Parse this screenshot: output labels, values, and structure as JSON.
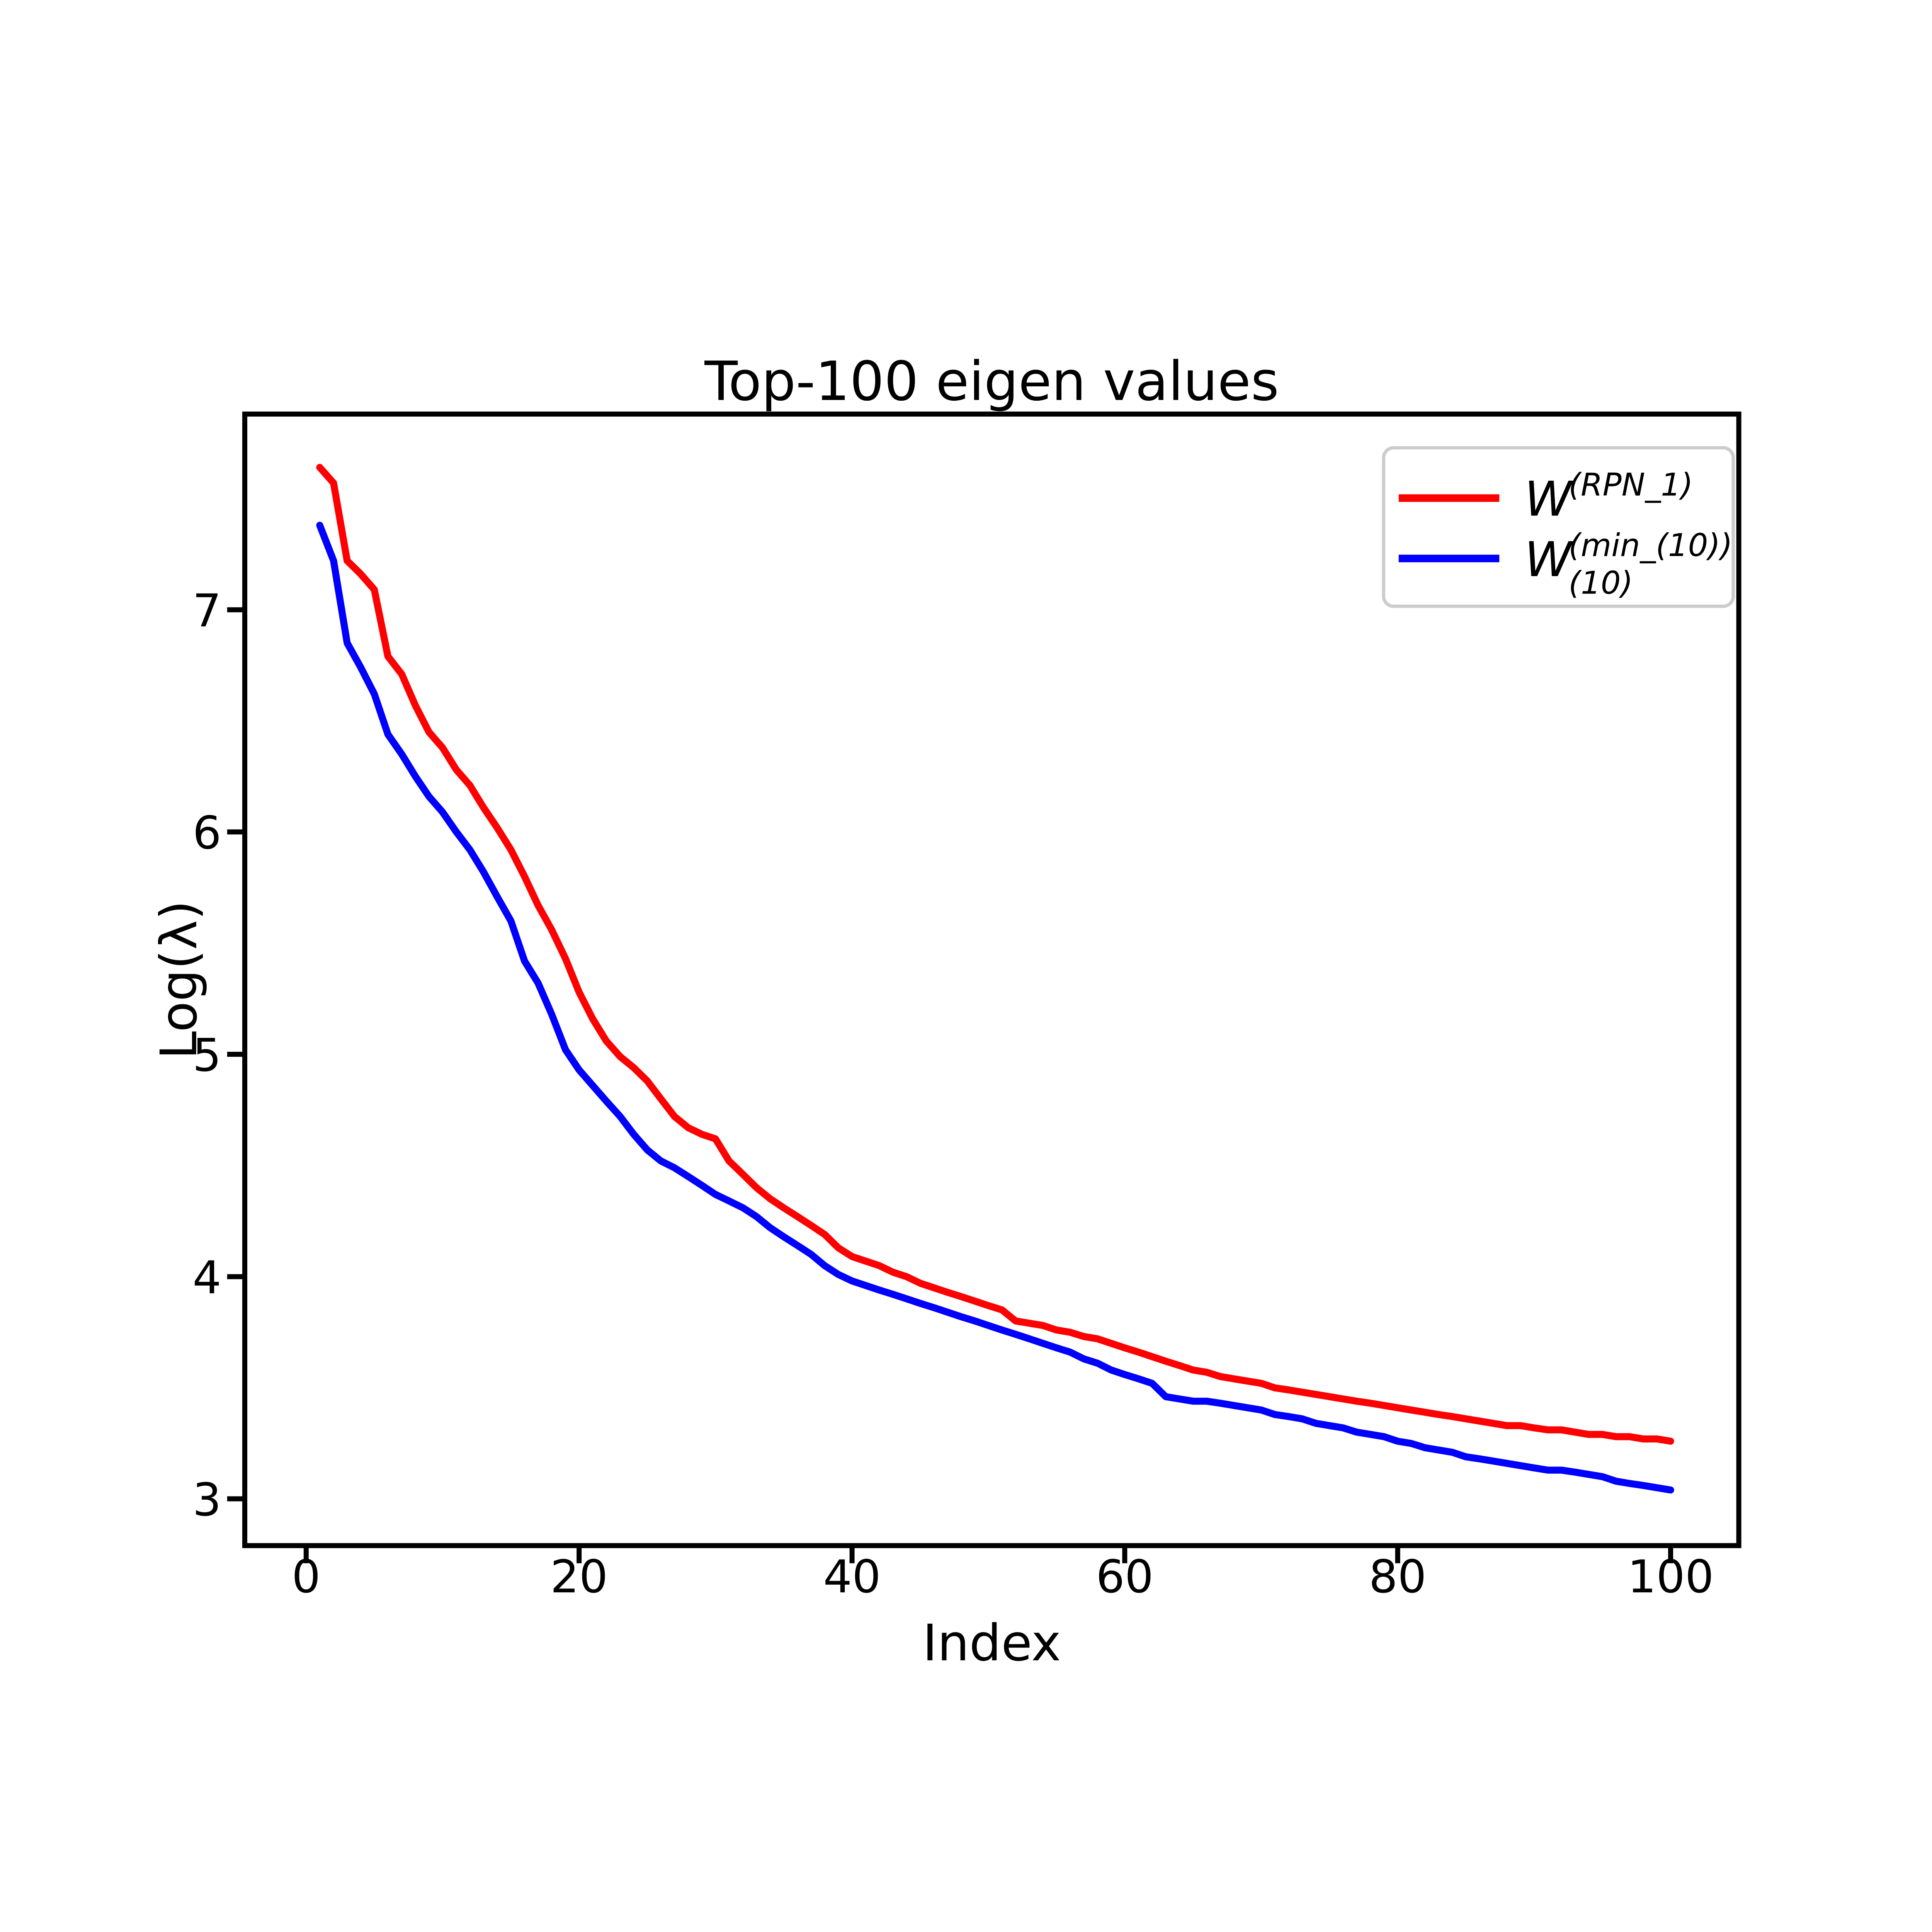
{
  "chart_data": {
    "type": "line",
    "title": "Top-100 eigen values",
    "xlabel": "Index",
    "ylabel": "Log(λ)",
    "xlim": [
      -4.5,
      105.0
    ],
    "ylim": [
      2.79,
      7.88
    ],
    "xticks": [
      0,
      20,
      40,
      60,
      80,
      100
    ],
    "yticks": [
      3,
      4,
      5,
      6,
      7
    ],
    "grid": false,
    "legend_position": "upper right",
    "x_start": 1,
    "x_step": 1,
    "series": [
      {
        "name": "W^(RPN_1)",
        "color": "#ff0000",
        "values": [
          7.64,
          7.57,
          7.22,
          7.16,
          7.09,
          6.79,
          6.71,
          6.57,
          6.45,
          6.38,
          6.28,
          6.21,
          6.11,
          6.02,
          5.92,
          5.8,
          5.67,
          5.56,
          5.43,
          5.28,
          5.16,
          5.06,
          4.99,
          4.94,
          4.88,
          4.8,
          4.72,
          4.67,
          4.64,
          4.62,
          4.52,
          4.46,
          4.4,
          4.35,
          4.31,
          4.27,
          4.23,
          4.19,
          4.13,
          4.09,
          4.07,
          4.05,
          4.02,
          4.0,
          3.97,
          3.95,
          3.93,
          3.91,
          3.89,
          3.87,
          3.85,
          3.8,
          3.79,
          3.78,
          3.76,
          3.75,
          3.73,
          3.72,
          3.7,
          3.68,
          3.66,
          3.64,
          3.62,
          3.6,
          3.58,
          3.57,
          3.55,
          3.54,
          3.53,
          3.52,
          3.5,
          3.49,
          3.48,
          3.47,
          3.46,
          3.45,
          3.44,
          3.43,
          3.42,
          3.41,
          3.4,
          3.39,
          3.38,
          3.37,
          3.36,
          3.35,
          3.34,
          3.33,
          3.33,
          3.32,
          3.31,
          3.31,
          3.3,
          3.29,
          3.29,
          3.28,
          3.28,
          3.27,
          3.27,
          3.26
        ]
      },
      {
        "name": "W_(10)^(min_(10))",
        "color": "#0000ff",
        "values": [
          7.38,
          7.22,
          6.85,
          6.74,
          6.62,
          6.44,
          6.35,
          6.25,
          6.16,
          6.09,
          6.0,
          5.92,
          5.82,
          5.71,
          5.6,
          5.42,
          5.32,
          5.18,
          5.02,
          4.93,
          4.86,
          4.79,
          4.72,
          4.64,
          4.57,
          4.52,
          4.49,
          4.45,
          4.41,
          4.37,
          4.34,
          4.31,
          4.27,
          4.22,
          4.18,
          4.14,
          4.1,
          4.05,
          4.01,
          3.98,
          3.96,
          3.94,
          3.92,
          3.9,
          3.88,
          3.86,
          3.84,
          3.82,
          3.8,
          3.78,
          3.76,
          3.74,
          3.72,
          3.7,
          3.68,
          3.66,
          3.63,
          3.61,
          3.58,
          3.56,
          3.54,
          3.52,
          3.46,
          3.45,
          3.44,
          3.44,
          3.43,
          3.42,
          3.41,
          3.4,
          3.38,
          3.37,
          3.36,
          3.34,
          3.33,
          3.32,
          3.3,
          3.29,
          3.28,
          3.26,
          3.25,
          3.23,
          3.22,
          3.21,
          3.19,
          3.18,
          3.17,
          3.16,
          3.15,
          3.14,
          3.13,
          3.13,
          3.12,
          3.11,
          3.1,
          3.08,
          3.07,
          3.06,
          3.05,
          3.04
        ]
      }
    ],
    "legend": {
      "entries": [
        {
          "base": "W",
          "sup": "(RPN_1)",
          "sub": "",
          "color": "#ff0000"
        },
        {
          "base": "W",
          "sup": "(min_(10))",
          "sub": "(10)",
          "color": "#0000ff"
        }
      ]
    }
  }
}
